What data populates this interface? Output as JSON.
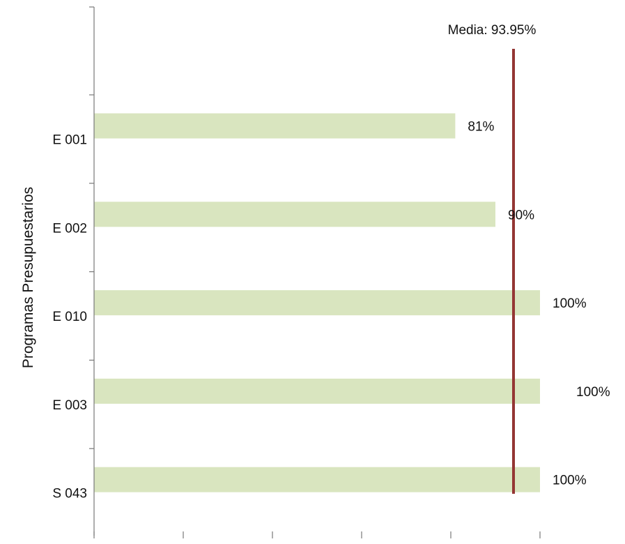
{
  "chart_data": {
    "type": "bar",
    "orientation": "horizontal",
    "ylabel": "Programas Presupuestarios",
    "xlabel": "",
    "categories": [
      "E 001",
      "E 002",
      "E 010",
      "E 003",
      "S 043"
    ],
    "values": [
      81,
      90,
      100,
      100,
      100
    ],
    "value_labels": [
      "81%",
      "90%",
      "100%",
      "100%",
      "100%"
    ],
    "xlim": [
      0,
      100
    ],
    "x_ticks": 5,
    "mean": {
      "value": 93.95,
      "label": "Media: 93.95%"
    },
    "grid": false,
    "colors": {
      "bar": "#d9e5bf",
      "mean_line": "#943634",
      "axis": "#777777"
    }
  }
}
